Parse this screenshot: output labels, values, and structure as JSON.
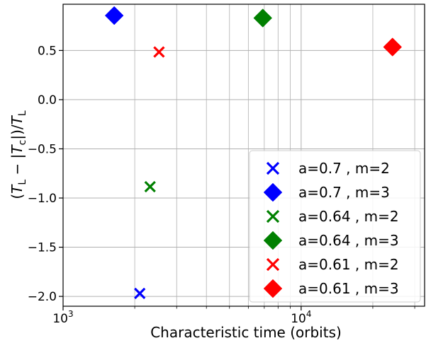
{
  "chart_data": {
    "type": "scatter",
    "title": "",
    "xlabel": "Characteristic time (orbits)",
    "ylabel": "(T_L − |T_c|)/T_L",
    "xscale": "log",
    "xlim": [
      1000,
      33000
    ],
    "ylim": [
      -2.1,
      0.97
    ],
    "grid": true,
    "legend_position": "lower-right",
    "x_ticks": [
      {
        "value": 1000,
        "base": "10",
        "exp": "3"
      },
      {
        "value": 10000,
        "base": "10",
        "exp": "4"
      }
    ],
    "y_ticks": [
      {
        "value": 0.5,
        "label": "0.5"
      },
      {
        "value": 0.0,
        "label": "0.0"
      },
      {
        "value": -0.5,
        "label": "−0.5"
      },
      {
        "value": -1.0,
        "label": "−1.0"
      },
      {
        "value": -1.5,
        "label": "−1.5"
      },
      {
        "value": -2.0,
        "label": "−2.0"
      }
    ],
    "series": [
      {
        "name": "a=0.7 , m=2",
        "marker": "x",
        "color": "#0000ff",
        "points": [
          {
            "x": 2100,
            "y": -1.97
          }
        ]
      },
      {
        "name": "a=0.7 , m=3",
        "marker": "D",
        "color": "#0000ff",
        "points": [
          {
            "x": 1640,
            "y": 0.855
          }
        ]
      },
      {
        "name": "a=0.64 , m=2",
        "marker": "x",
        "color": "#008000",
        "points": [
          {
            "x": 2320,
            "y": -0.885
          }
        ]
      },
      {
        "name": "a=0.64 , m=3",
        "marker": "D",
        "color": "#008000",
        "points": [
          {
            "x": 6900,
            "y": 0.83
          }
        ]
      },
      {
        "name": "a=0.61 , m=2",
        "marker": "x",
        "color": "#ff0000",
        "points": [
          {
            "x": 2530,
            "y": 0.485
          }
        ]
      },
      {
        "name": "a=0.61 , m=3",
        "marker": "D",
        "color": "#ff0000",
        "points": [
          {
            "x": 24200,
            "y": 0.535
          }
        ]
      }
    ]
  }
}
